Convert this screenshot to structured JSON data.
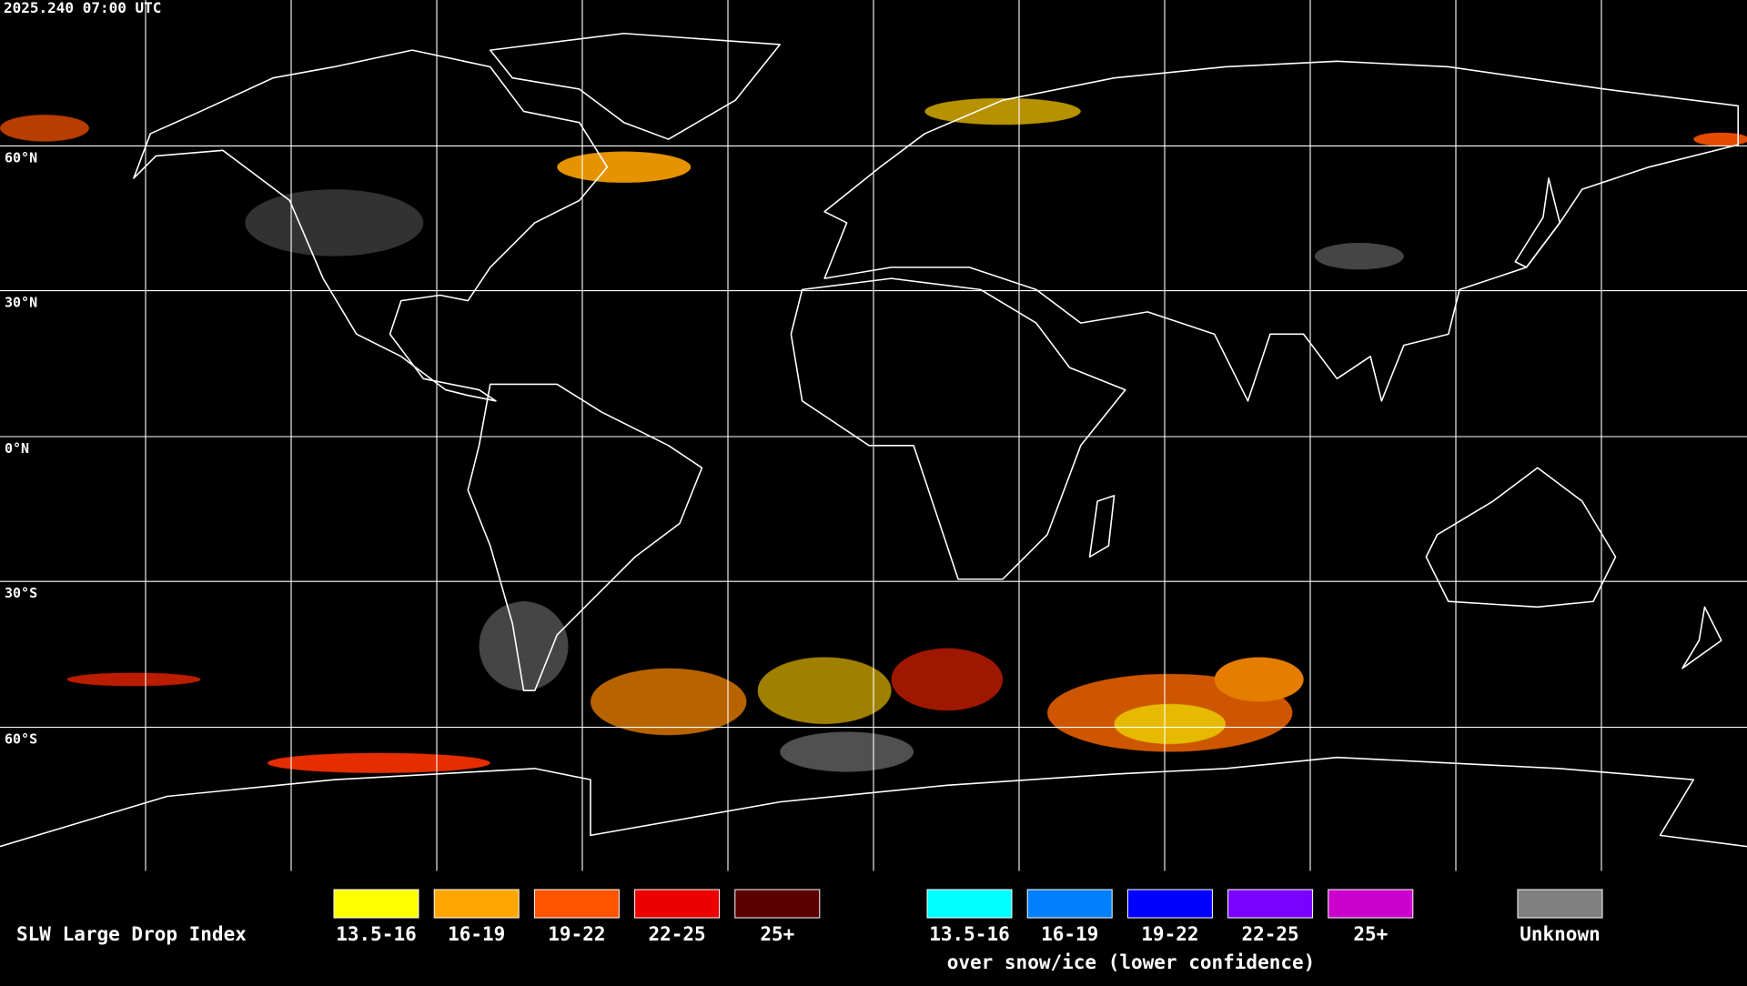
{
  "timestamp": "2025.240 07:00 UTC",
  "latitude_labels": [
    "60°N",
    "30°N",
    "0°N",
    "30°S",
    "60°S"
  ],
  "legend": {
    "title": "SLW Large Drop Index",
    "classes": [
      {
        "label": "13.5-16",
        "color": "#ffff00"
      },
      {
        "label": "16-19",
        "color": "#ffa500"
      },
      {
        "label": "19-22",
        "color": "#ff5500"
      },
      {
        "label": "22-25",
        "color": "#ee0000"
      },
      {
        "label": "25+",
        "color": "#5a0000"
      }
    ],
    "snow_ice_classes": [
      {
        "label": "13.5-16",
        "color": "#00ffff"
      },
      {
        "label": "16-19",
        "color": "#0080ff"
      },
      {
        "label": "19-22",
        "color": "#0000ff"
      },
      {
        "label": "22-25",
        "color": "#7a00ff"
      },
      {
        "label": "25+",
        "color": "#cc00cc"
      }
    ],
    "snow_ice_note": "over snow/ice (lower confidence)",
    "unknown": {
      "label": "Unknown",
      "color": "#808080"
    }
  }
}
